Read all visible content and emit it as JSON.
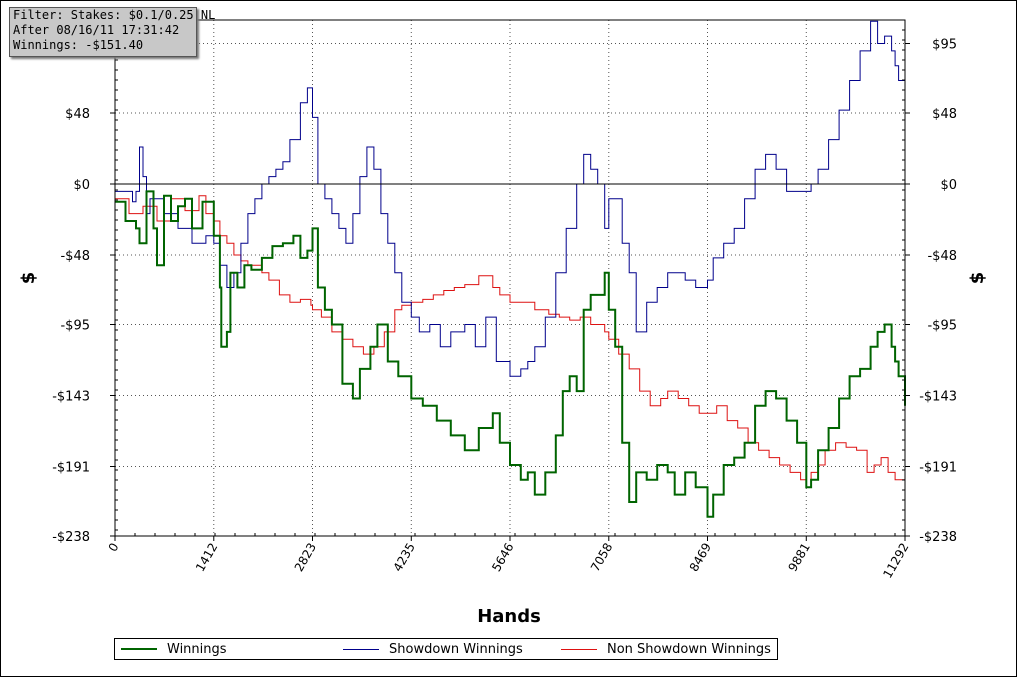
{
  "filter": {
    "line1": "Filter: Stakes: $0.1/0.25 NL",
    "line2": "After 08/16/11 17:31:42",
    "line3": "Winnings: -$151.40"
  },
  "chart_data": {
    "type": "line",
    "xlabel": "Hands",
    "ylabel_left": "$",
    "ylabel_right": "$",
    "xlim": [
      0,
      11292
    ],
    "ylim": [
      -238,
      110
    ],
    "x_ticks": [
      0,
      1412,
      2823,
      4235,
      5646,
      7058,
      8469,
      9881,
      11292
    ],
    "y_ticks_left": [
      {
        "value": 48,
        "label": "$48"
      },
      {
        "value": 0,
        "label": "$0"
      },
      {
        "value": -48,
        "label": "-$48"
      },
      {
        "value": -95,
        "label": "-$95"
      },
      {
        "value": -143,
        "label": "-$143"
      },
      {
        "value": -191,
        "label": "-$191"
      },
      {
        "value": -238,
        "label": "-$238"
      }
    ],
    "y_ticks_right": [
      {
        "value": 95,
        "label": "$95"
      },
      {
        "value": 48,
        "label": "$48"
      },
      {
        "value": 0,
        "label": "$0"
      },
      {
        "value": -48,
        "label": "-$48"
      },
      {
        "value": -95,
        "label": "-$95"
      },
      {
        "value": -143,
        "label": "-$143"
      },
      {
        "value": -191,
        "label": "-$191"
      },
      {
        "value": -238,
        "label": "-$238"
      }
    ],
    "grid": true,
    "legend_position": "bottom",
    "series": [
      {
        "name": "Winnings",
        "color": "#006400",
        "width": 2,
        "x": [
          0,
          150,
          300,
          350,
          450,
          550,
          600,
          700,
          800,
          900,
          1000,
          1100,
          1250,
          1412,
          1500,
          1520,
          1600,
          1650,
          1750,
          1850,
          1950,
          2100,
          2250,
          2400,
          2550,
          2650,
          2750,
          2823,
          2900,
          3000,
          3100,
          3250,
          3400,
          3500,
          3650,
          3750,
          3900,
          4050,
          4235,
          4400,
          4600,
          4800,
          5000,
          5200,
          5400,
          5500,
          5646,
          5800,
          5900,
          6000,
          6150,
          6300,
          6400,
          6500,
          6600,
          6700,
          6800,
          7000,
          7058,
          7150,
          7250,
          7350,
          7450,
          7600,
          7750,
          7900,
          8000,
          8150,
          8300,
          8469,
          8550,
          8700,
          8850,
          9000,
          9150,
          9300,
          9450,
          9600,
          9750,
          9881,
          9950,
          10050,
          10200,
          10350,
          10500,
          10650,
          10800,
          10900,
          11000,
          11100,
          11150,
          11200,
          11292
        ],
        "y": [
          -12,
          -25,
          -30,
          -40,
          -5,
          -30,
          -55,
          -8,
          -25,
          -15,
          -10,
          -30,
          -12,
          -35,
          -70,
          -110,
          -100,
          -60,
          -70,
          -55,
          -58,
          -50,
          -42,
          -40,
          -35,
          -50,
          -45,
          -30,
          -70,
          -85,
          -95,
          -135,
          -145,
          -125,
          -110,
          -95,
          -120,
          -130,
          -145,
          -150,
          -160,
          -170,
          -180,
          -165,
          -155,
          -175,
          -190,
          -200,
          -195,
          -210,
          -195,
          -170,
          -140,
          -130,
          -140,
          -85,
          -75,
          -60,
          -85,
          -110,
          -175,
          -215,
          -195,
          -200,
          -190,
          -195,
          -210,
          -195,
          -205,
          -225,
          -210,
          -190,
          -185,
          -175,
          -150,
          -140,
          -145,
          -160,
          -175,
          -205,
          -200,
          -180,
          -165,
          -145,
          -130,
          -125,
          -110,
          -100,
          -95,
          -110,
          -120,
          -130,
          -150
        ]
      },
      {
        "name": "Showdown Winnings",
        "color": "#00008b",
        "width": 1,
        "x": [
          0,
          100,
          200,
          250,
          300,
          350,
          400,
          450,
          500,
          700,
          900,
          1100,
          1300,
          1412,
          1500,
          1600,
          1700,
          1800,
          1900,
          2000,
          2100,
          2200,
          2300,
          2400,
          2500,
          2650,
          2750,
          2823,
          2900,
          3000,
          3100,
          3200,
          3300,
          3400,
          3500,
          3600,
          3700,
          3800,
          3900,
          4000,
          4100,
          4235,
          4350,
          4500,
          4650,
          4800,
          5000,
          5150,
          5300,
          5450,
          5646,
          5800,
          5900,
          6000,
          6150,
          6300,
          6450,
          6600,
          6700,
          6800,
          6900,
          7000,
          7058,
          7150,
          7250,
          7350,
          7450,
          7600,
          7750,
          7900,
          8000,
          8150,
          8300,
          8469,
          8550,
          8700,
          8850,
          9000,
          9150,
          9300,
          9450,
          9600,
          9750,
          9881,
          9950,
          10050,
          10200,
          10350,
          10500,
          10650,
          10800,
          10900,
          11000,
          11100,
          11150,
          11200,
          11292
        ],
        "y": [
          -5,
          -5,
          -5,
          -12,
          -5,
          25,
          5,
          -20,
          -10,
          -20,
          -30,
          -40,
          -35,
          -40,
          -55,
          -70,
          -60,
          -40,
          -20,
          -10,
          0,
          5,
          10,
          15,
          30,
          55,
          65,
          45,
          0,
          -10,
          -20,
          -30,
          -40,
          -20,
          5,
          25,
          10,
          -20,
          -40,
          -60,
          -80,
          -90,
          -100,
          -95,
          -110,
          -100,
          -95,
          -110,
          -90,
          -120,
          -130,
          -125,
          -120,
          -110,
          -90,
          -60,
          -30,
          0,
          20,
          10,
          0,
          -30,
          -10,
          -10,
          -40,
          -60,
          -100,
          -80,
          -70,
          -60,
          -60,
          -65,
          -70,
          -65,
          -50,
          -40,
          -30,
          -10,
          10,
          20,
          10,
          -5,
          -5,
          -5,
          0,
          10,
          30,
          50,
          70,
          90,
          110,
          95,
          100,
          90,
          80,
          70,
          60
        ]
      },
      {
        "name": "Non Showdown Winnings",
        "color": "#dd1111",
        "width": 1,
        "x": [
          0,
          200,
          400,
          600,
          800,
          1000,
          1200,
          1300,
          1412,
          1500,
          1600,
          1700,
          1800,
          1900,
          2000,
          2100,
          2200,
          2350,
          2500,
          2650,
          2800,
          2823,
          2950,
          3100,
          3250,
          3400,
          3550,
          3700,
          3850,
          4000,
          4100,
          4235,
          4400,
          4550,
          4700,
          4850,
          5000,
          5200,
          5400,
          5500,
          5646,
          5800,
          6000,
          6200,
          6350,
          6500,
          6650,
          6800,
          7000,
          7058,
          7200,
          7350,
          7500,
          7650,
          7800,
          7900,
          8050,
          8200,
          8350,
          8469,
          8600,
          8750,
          8900,
          9050,
          9200,
          9350,
          9500,
          9650,
          9800,
          9881,
          9950,
          10050,
          10150,
          10300,
          10450,
          10600,
          10750,
          10850,
          10950,
          11050,
          11150,
          11292
        ],
        "y": [
          -10,
          -20,
          -15,
          -25,
          -10,
          -18,
          -8,
          -20,
          -25,
          -35,
          -40,
          -48,
          -52,
          -55,
          -55,
          -60,
          -65,
          -75,
          -80,
          -78,
          -82,
          -85,
          -90,
          -100,
          -105,
          -110,
          -115,
          -110,
          -100,
          -85,
          -82,
          -80,
          -78,
          -75,
          -72,
          -70,
          -68,
          -62,
          -70,
          -75,
          -80,
          -80,
          -85,
          -88,
          -90,
          -92,
          -90,
          -95,
          -100,
          -105,
          -115,
          -125,
          -140,
          -150,
          -145,
          -140,
          -145,
          -150,
          -155,
          -155,
          -150,
          -160,
          -165,
          -175,
          -180,
          -185,
          -190,
          -195,
          -200,
          -205,
          -195,
          -190,
          -180,
          -175,
          -178,
          -180,
          -195,
          -190,
          -185,
          -195,
          -200,
          -205
        ]
      }
    ]
  },
  "legend": {
    "items": [
      "Winnings",
      "Showdown Winnings",
      "Non Showdown Winnings"
    ]
  }
}
